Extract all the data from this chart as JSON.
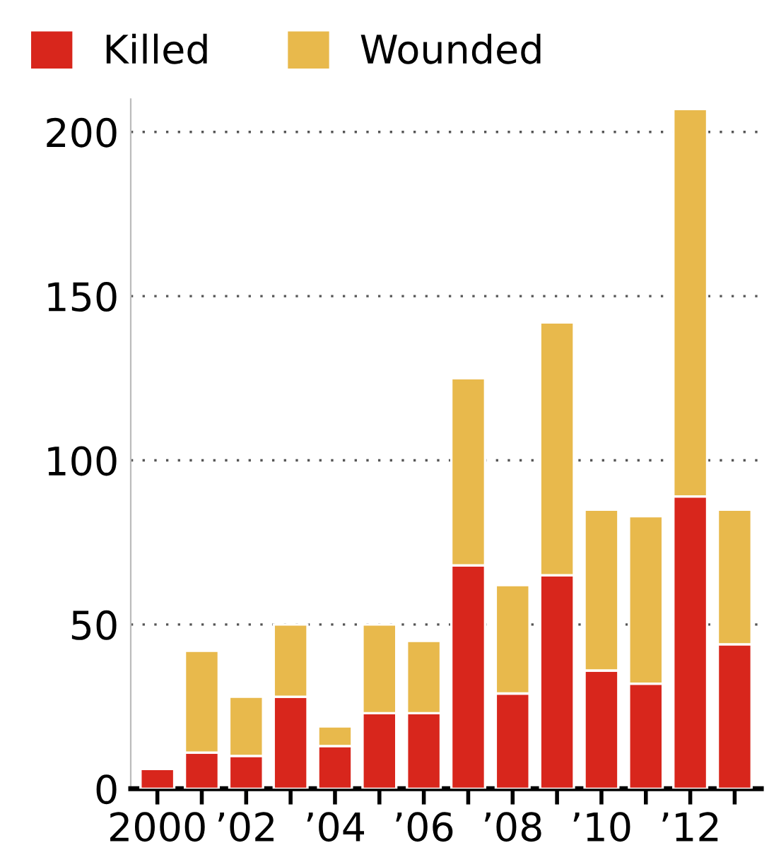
{
  "chart_data": {
    "type": "bar",
    "stacked": true,
    "categories": [
      "2000",
      null,
      "’02",
      null,
      "’04",
      null,
      "’06",
      null,
      "’08",
      null,
      "’10",
      null,
      "’12",
      null
    ],
    "series": [
      {
        "name": "Killed",
        "color": "#d8261c",
        "values": [
          6,
          11,
          10,
          28,
          13,
          23,
          23,
          68,
          29,
          65,
          36,
          32,
          89,
          44
        ]
      },
      {
        "name": "Wounded",
        "color": "#e8b94c",
        "values": [
          null,
          31,
          18,
          22,
          6,
          27,
          22,
          57,
          33,
          77,
          49,
          51,
          118,
          41
        ]
      }
    ],
    "ylim": [
      0,
      210
    ],
    "yticks": [
      0,
      50,
      100,
      150,
      200
    ],
    "grid": "y",
    "legend": "top left"
  }
}
